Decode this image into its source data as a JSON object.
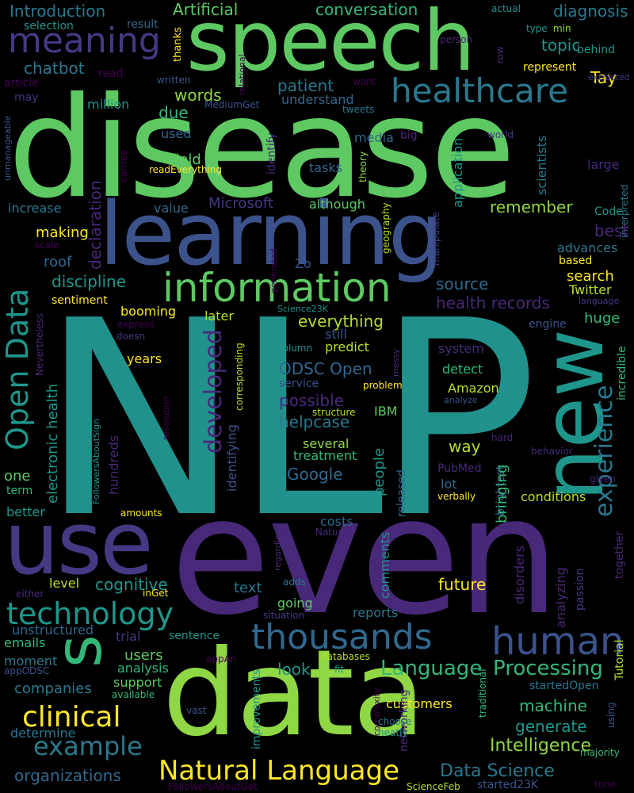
{
  "words": [
    {
      "id": "w1",
      "text": "NLP",
      "color": "teal"
    },
    {
      "id": "w2",
      "text": "disease",
      "color": "green"
    },
    {
      "id": "w3",
      "text": "even",
      "color": "purple"
    },
    {
      "id": "w4",
      "text": "data",
      "color": "lgreen"
    },
    {
      "id": "w5",
      "text": "learning",
      "color": "dblue"
    },
    {
      "id": "w6",
      "text": "speech",
      "color": "green"
    },
    {
      "id": "w7",
      "text": "use",
      "color": "indigo"
    },
    {
      "id": "w8",
      "text": "new",
      "color": "dteal"
    },
    {
      "id": "w9",
      "text": "s",
      "color": "mgreen"
    },
    {
      "id": "w10",
      "text": "information",
      "color": "green"
    },
    {
      "id": "w11",
      "text": "human",
      "color": "dblue"
    },
    {
      "id": "w12",
      "text": "thousands",
      "color": "blue"
    },
    {
      "id": "w13",
      "text": "healthcare",
      "color": "tblue"
    },
    {
      "id": "w14",
      "text": "meaning",
      "color": "indigo"
    },
    {
      "id": "w15",
      "text": "technology",
      "color": "dteal"
    },
    {
      "id": "w16",
      "text": "Open Data",
      "color": "dteal"
    },
    {
      "id": "w17",
      "text": "clinical",
      "color": "yellow"
    },
    {
      "id": "w18",
      "text": "Natural Language",
      "color": "yellow"
    },
    {
      "id": "w19",
      "text": "example",
      "color": "tblue"
    },
    {
      "id": "w20",
      "text": "Language",
      "color": "mgreen"
    },
    {
      "id": "w21",
      "text": "Processing",
      "color": "mgreen"
    },
    {
      "id": "w22",
      "text": "developed",
      "color": "purple"
    },
    {
      "id": "w23",
      "text": "experience",
      "color": "tblue"
    },
    {
      "id": "w24",
      "text": "Intelligence",
      "color": "lgreen"
    },
    {
      "id": "w25",
      "text": "Data Science",
      "color": "tblue"
    },
    {
      "id": "w26",
      "text": "Introduction",
      "color": "tblue"
    },
    {
      "id": "w27",
      "text": "Artificial",
      "color": "green"
    },
    {
      "id": "w28",
      "text": "conversation",
      "color": "mgreen"
    },
    {
      "id": "w29",
      "text": "diagnosis",
      "color": "tblue"
    },
    {
      "id": "w30",
      "text": "selection",
      "color": "dteal"
    },
    {
      "id": "w31",
      "text": "result",
      "color": "blue"
    },
    {
      "id": "w32",
      "text": "thanks",
      "color": "yellow"
    },
    {
      "id": "w33",
      "text": "topic",
      "color": "dteal"
    },
    {
      "id": "w34",
      "text": "Tay",
      "color": "yellow"
    },
    {
      "id": "w35",
      "text": "behind",
      "color": "dteal"
    },
    {
      "id": "w36",
      "text": "type",
      "color": "teal"
    },
    {
      "id": "w37",
      "text": "min",
      "color": "lgreen"
    },
    {
      "id": "w38",
      "text": "actual",
      "color": "teal"
    },
    {
      "id": "w39",
      "text": "person",
      "color": "purple"
    },
    {
      "id": "w40",
      "text": "row",
      "color": "purple"
    },
    {
      "id": "w41",
      "text": "represent",
      "color": "yellow"
    },
    {
      "id": "w42",
      "text": "extracted",
      "color": "indigo"
    },
    {
      "id": "w43",
      "text": "chatbot",
      "color": "tblue"
    },
    {
      "id": "w44",
      "text": "read",
      "color": "dpurple"
    },
    {
      "id": "w45",
      "text": "article",
      "color": "dpurple"
    },
    {
      "id": "w46",
      "text": "written",
      "color": "dblue"
    },
    {
      "id": "w47",
      "text": "want",
      "color": "dpurple"
    },
    {
      "id": "w48",
      "text": "relational",
      "color": "dpurple"
    },
    {
      "id": "w49",
      "text": "may",
      "color": "vdpurp"
    },
    {
      "id": "w50",
      "text": "million",
      "color": "teal"
    },
    {
      "id": "w51",
      "text": "MediumGet",
      "color": "dblue"
    },
    {
      "id": "w52",
      "text": "understand",
      "color": "blue"
    },
    {
      "id": "w53",
      "text": "tweets",
      "color": "tblue"
    },
    {
      "id": "w54",
      "text": "patient",
      "color": "tblue"
    },
    {
      "id": "w55",
      "text": "words",
      "color": "lgreen"
    },
    {
      "id": "w56",
      "text": "due",
      "color": "mgreen"
    },
    {
      "id": "w57",
      "text": "unmanageable",
      "color": "dblue"
    },
    {
      "id": "w58",
      "text": "used",
      "color": "blue"
    },
    {
      "id": "w59",
      "text": "media",
      "color": "blue"
    },
    {
      "id": "w60",
      "text": "big",
      "color": "purple"
    },
    {
      "id": "w61",
      "text": "world",
      "color": "indigo"
    },
    {
      "id": "w62",
      "text": "scientists",
      "color": "tblue"
    },
    {
      "id": "w63",
      "text": "application",
      "color": "dteal"
    },
    {
      "id": "w64",
      "text": "identify",
      "color": "purple"
    },
    {
      "id": "w65",
      "text": "theory",
      "color": "lgreen"
    },
    {
      "id": "w66",
      "text": "carries",
      "color": "dpurple"
    },
    {
      "id": "w67",
      "text": "field",
      "color": "green"
    },
    {
      "id": "w68",
      "text": "readEverything",
      "color": "yellow"
    },
    {
      "id": "w69",
      "text": "tasks",
      "color": "blue"
    },
    {
      "id": "w70",
      "text": "large",
      "color": "purple"
    },
    {
      "id": "w71",
      "text": "declaration",
      "color": "purple"
    },
    {
      "id": "w72",
      "text": "Microsoft",
      "color": "indigo"
    },
    {
      "id": "w73",
      "text": "although",
      "color": "green"
    },
    {
      "id": "w74",
      "text": "increase",
      "color": "tblue"
    },
    {
      "id": "w75",
      "text": "value",
      "color": "blue"
    },
    {
      "id": "w76",
      "text": "remember",
      "color": "lgreen"
    },
    {
      "id": "w77",
      "text": "Code",
      "color": "dteal"
    },
    {
      "id": "w78",
      "text": "interpreted",
      "color": "tblue"
    },
    {
      "id": "w79",
      "text": "making",
      "color": "yellow"
    },
    {
      "id": "w80",
      "text": "best",
      "color": "purple"
    },
    {
      "id": "w81",
      "text": "scale",
      "color": "dpurple"
    },
    {
      "id": "w82",
      "text": "roof",
      "color": "blue"
    },
    {
      "id": "w83",
      "text": "geography",
      "color": "lime"
    },
    {
      "id": "w84",
      "text": "manipulate",
      "color": "indigo"
    },
    {
      "id": "w85",
      "text": "advances",
      "color": "tblue"
    },
    {
      "id": "w86",
      "text": "based",
      "color": "yellow"
    },
    {
      "id": "w87",
      "text": "Zo",
      "color": "dblue"
    },
    {
      "id": "w88",
      "text": "generated",
      "color": "dpurple"
    },
    {
      "id": "w89",
      "text": "search",
      "color": "yellow"
    },
    {
      "id": "w90",
      "text": "discipline",
      "color": "dteal"
    },
    {
      "id": "w91",
      "text": "source",
      "color": "blue"
    },
    {
      "id": "w92",
      "text": "Twitter",
      "color": "lime"
    },
    {
      "id": "w93",
      "text": "language",
      "color": "indigo"
    },
    {
      "id": "w94",
      "text": "sentiment",
      "color": "yellow"
    },
    {
      "id": "w95",
      "text": "booming",
      "color": "yellow"
    },
    {
      "id": "w96",
      "text": "health records",
      "color": "purple"
    },
    {
      "id": "w97",
      "text": "express",
      "color": "dpurple"
    },
    {
      "id": "w98",
      "text": "Science23K",
      "color": "teal"
    },
    {
      "id": "w99",
      "text": "later",
      "color": "lime"
    },
    {
      "id": "w100",
      "text": "everything",
      "color": "lime"
    },
    {
      "id": "w101",
      "text": "huge",
      "color": "mgreen"
    },
    {
      "id": "w102",
      "text": "engine",
      "color": "dblue"
    },
    {
      "id": "w103",
      "text": "doesn",
      "color": "indigo"
    },
    {
      "id": "w104",
      "text": "Nevertheless",
      "color": "purple"
    },
    {
      "id": "w105",
      "text": "still",
      "color": "dblue"
    },
    {
      "id": "w106",
      "text": "electronic health",
      "color": "dteal"
    },
    {
      "id": "w107",
      "text": "predict",
      "color": "lime"
    },
    {
      "id": "w108",
      "text": "column",
      "color": "teal"
    },
    {
      "id": "w109",
      "text": "system",
      "color": "purple"
    },
    {
      "id": "w110",
      "text": "incredible",
      "color": "mgreen"
    },
    {
      "id": "w111",
      "text": "years",
      "color": "yellow"
    },
    {
      "id": "w112",
      "text": "ODSC Open",
      "color": "blue"
    },
    {
      "id": "w113",
      "text": "messy",
      "color": "purple"
    },
    {
      "id": "w114",
      "text": "detect",
      "color": "mgreen"
    },
    {
      "id": "w115",
      "text": "corresponding",
      "color": "lime"
    },
    {
      "id": "w116",
      "text": "service",
      "color": "dblue"
    },
    {
      "id": "w117",
      "text": "problem",
      "color": "yellow"
    },
    {
      "id": "w118",
      "text": "Amazon",
      "color": "lime"
    },
    {
      "id": "w119",
      "text": "possible",
      "color": "purple"
    },
    {
      "id": "w120",
      "text": "analyze",
      "color": "dblue"
    },
    {
      "id": "w121",
      "text": "helpcase",
      "color": "tblue"
    },
    {
      "id": "w122",
      "text": "structure",
      "color": "lime"
    },
    {
      "id": "w123",
      "text": "IBM",
      "color": "green"
    },
    {
      "id": "w124",
      "text": "FollowersAboutSign",
      "color": "teal"
    },
    {
      "id": "w125",
      "text": "revolution",
      "color": "dpurple"
    },
    {
      "id": "w126",
      "text": "identifying",
      "color": "dblue"
    },
    {
      "id": "w127",
      "text": "several",
      "color": "lgreen"
    },
    {
      "id": "w128",
      "text": "way",
      "color": "lime"
    },
    {
      "id": "w129",
      "text": "treatment",
      "color": "mgreen"
    },
    {
      "id": "w130",
      "text": "hard",
      "color": "purple"
    },
    {
      "id": "w131",
      "text": "behavior",
      "color": "purple"
    },
    {
      "id": "w132",
      "text": "Google",
      "color": "blue"
    },
    {
      "id": "w133",
      "text": "one",
      "color": "green"
    },
    {
      "id": "w134",
      "text": "term",
      "color": "mgreen"
    },
    {
      "id": "w135",
      "text": "hundreds",
      "color": "purple"
    },
    {
      "id": "w136",
      "text": "people",
      "color": "dteal"
    },
    {
      "id": "w137",
      "text": "released",
      "color": "blue"
    },
    {
      "id": "w138",
      "text": "PubMed",
      "color": "purple"
    },
    {
      "id": "w139",
      "text": "lot",
      "color": "blue"
    },
    {
      "id": "w140",
      "text": "brightest",
      "color": "blue"
    },
    {
      "id": "w141",
      "text": "given",
      "color": "purple"
    },
    {
      "id": "w142",
      "text": "verbally",
      "color": "yellow"
    },
    {
      "id": "w143",
      "text": "bringing",
      "color": "mgreen"
    },
    {
      "id": "w144",
      "text": "conditions",
      "color": "lime"
    },
    {
      "id": "w145",
      "text": "better",
      "color": "dteal"
    },
    {
      "id": "w146",
      "text": "amounts",
      "color": "yellow"
    },
    {
      "id": "w147",
      "text": "costs",
      "color": "blue"
    },
    {
      "id": "w148",
      "text": "Natural",
      "color": "purple"
    },
    {
      "id": "w149",
      "text": "regarding",
      "color": "purple"
    },
    {
      "id": "w150",
      "text": "level",
      "color": "lime"
    },
    {
      "id": "w151",
      "text": "cognitive",
      "color": "dteal"
    },
    {
      "id": "w152",
      "text": "adds",
      "color": "tblue"
    },
    {
      "id": "w153",
      "text": "comments",
      "color": "dteal"
    },
    {
      "id": "w154",
      "text": "disorders",
      "color": "purple"
    },
    {
      "id": "w155",
      "text": "analyzing",
      "color": "purple"
    },
    {
      "id": "w156",
      "text": "together",
      "color": "purple"
    },
    {
      "id": "w157",
      "text": "passion",
      "color": "indigo"
    },
    {
      "id": "w158",
      "text": "either",
      "color": "purple"
    },
    {
      "id": "w159",
      "text": "inGet",
      "color": "yellow"
    },
    {
      "id": "w160",
      "text": "text",
      "color": "tblue"
    },
    {
      "id": "w161",
      "text": "going",
      "color": "green"
    },
    {
      "id": "w162",
      "text": "situation",
      "color": "indigo"
    },
    {
      "id": "w163",
      "text": "reports",
      "color": "tblue"
    },
    {
      "id": "w164",
      "text": "future",
      "color": "yellow"
    },
    {
      "id": "w165",
      "text": "unstructured",
      "color": "blue"
    },
    {
      "id": "w166",
      "text": "emails",
      "color": "mgreen"
    },
    {
      "id": "w167",
      "text": "trial",
      "color": "indigo"
    },
    {
      "id": "w168",
      "text": "sentence",
      "color": "dteal"
    },
    {
      "id": "w169",
      "text": "moment",
      "color": "tblue"
    },
    {
      "id": "w170",
      "text": "users",
      "color": "green"
    },
    {
      "id": "w171",
      "text": "appAn",
      "color": "dpurple"
    },
    {
      "id": "w172",
      "text": "databases",
      "color": "lime"
    },
    {
      "id": "w173",
      "text": "appODSC",
      "color": "dblue"
    },
    {
      "id": "w174",
      "text": "analysis",
      "color": "mgreen"
    },
    {
      "id": "w175",
      "text": "look",
      "color": "dteal"
    },
    {
      "id": "w176",
      "text": "fit",
      "color": "dteal"
    },
    {
      "id": "w177",
      "text": "traditional",
      "color": "mgreen"
    },
    {
      "id": "w178",
      "text": "startedOpen",
      "color": "tblue"
    },
    {
      "id": "w179",
      "text": "Tutorial",
      "color": "lime"
    },
    {
      "id": "w180",
      "text": "companies",
      "color": "tblue"
    },
    {
      "id": "w181",
      "text": "support",
      "color": "green"
    },
    {
      "id": "w182",
      "text": "available",
      "color": "mgreen"
    },
    {
      "id": "w183",
      "text": "machine",
      "color": "mgreen"
    },
    {
      "id": "w184",
      "text": "customers",
      "color": "yellow"
    },
    {
      "id": "w185",
      "text": "improvements",
      "color": "dteal"
    },
    {
      "id": "w186",
      "text": "networking",
      "color": "purple"
    },
    {
      "id": "w187",
      "text": "complexity",
      "color": "dpurple"
    },
    {
      "id": "w188",
      "text": "choose",
      "color": "tblue"
    },
    {
      "id": "w189",
      "text": "neatly",
      "color": "teal"
    },
    {
      "id": "w190",
      "text": "using",
      "color": "dblue"
    },
    {
      "id": "w191",
      "text": "majority",
      "color": "mgreen"
    },
    {
      "id": "w192",
      "text": "generate",
      "color": "dteal"
    },
    {
      "id": "w193",
      "text": "determine",
      "color": "tblue"
    },
    {
      "id": "w194",
      "text": "vast",
      "color": "dblue"
    },
    {
      "id": "w195",
      "text": "organizations",
      "color": "blue"
    },
    {
      "id": "w196",
      "text": "FollowersAboutGet",
      "color": "dpurple"
    },
    {
      "id": "w197",
      "text": "ScienceFeb",
      "color": "lime"
    },
    {
      "id": "w198",
      "text": "started23K",
      "color": "dblue"
    },
    {
      "id": "w199",
      "text": "tone",
      "color": "dpurple"
    }
  ],
  "palette": {
    "yellow": "#fde725",
    "lime": "#b5de2b",
    "lgreen": "#8fd744",
    "green": "#5ec962",
    "mgreen": "#35b779",
    "teal": "#21918c",
    "dteal": "#1f968b",
    "tblue": "#2a788e",
    "blue": "#31688e",
    "dblue": "#3b528b",
    "indigo": "#443983",
    "purple": "#482878",
    "dpurple": "#440154",
    "vdpurp": "#46327e"
  }
}
